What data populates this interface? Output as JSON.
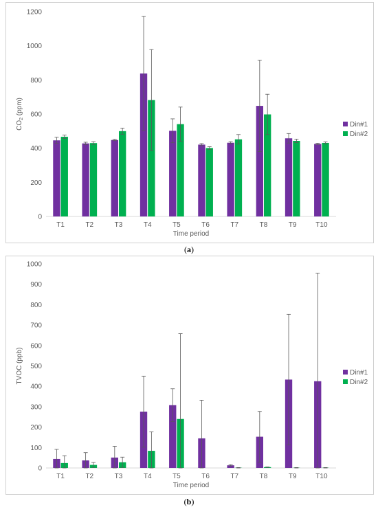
{
  "captions": {
    "a_open": "(",
    "a_letter": "a",
    "a_close": ")",
    "b_open": "(",
    "b_letter": "b",
    "b_close": ")"
  },
  "colors": {
    "din1": "#7030a0",
    "din2": "#00b050",
    "axis": "#d9d9d9",
    "error": "#595959"
  },
  "chart_data": [
    {
      "type": "bar",
      "title": "",
      "xlabel": "Time period",
      "ylabel_main": "CO",
      "ylabel_sub": "2",
      "ylabel_tail": " (ppm)",
      "ylim": [
        0,
        1200
      ],
      "yticks": [
        0,
        200,
        400,
        600,
        800,
        1000,
        1200
      ],
      "grid": false,
      "legend_position": "right",
      "categories": [
        "T1",
        "T2",
        "T3",
        "T4",
        "T5",
        "T6",
        "T7",
        "T8",
        "T9",
        "T10"
      ],
      "series": [
        {
          "name": "Din#1",
          "color": "#7030a0",
          "values": [
            446,
            428,
            448,
            838,
            502,
            421,
            432,
            648,
            458,
            425
          ],
          "errors": [
            18,
            7,
            4,
            335,
            70,
            6,
            6,
            268,
            28,
            4
          ]
        },
        {
          "name": "Din#2",
          "color": "#00b050",
          "values": [
            467,
            430,
            500,
            682,
            541,
            401,
            452,
            598,
            443,
            431
          ],
          "errors": [
            10,
            8,
            18,
            296,
            100,
            8,
            28,
            118,
            10,
            6
          ]
        }
      ]
    },
    {
      "type": "bar",
      "title": "",
      "xlabel": "Time period",
      "ylabel": "TVOC (ppb)",
      "ylim": [
        0,
        1000
      ],
      "yticks": [
        0,
        100,
        200,
        300,
        400,
        500,
        600,
        700,
        800,
        900,
        1000
      ],
      "grid": false,
      "legend_position": "right",
      "categories": [
        "T1",
        "T2",
        "T3",
        "T4",
        "T5",
        "T6",
        "T7",
        "T8",
        "T9",
        "T10"
      ],
      "series": [
        {
          "name": "Din#1",
          "color": "#7030a0",
          "values": [
            44,
            37,
            51,
            276,
            308,
            145,
            13,
            153,
            433,
            425
          ],
          "errors": [
            47,
            38,
            55,
            174,
            80,
            187,
            3,
            124,
            320,
            530
          ]
        },
        {
          "name": "Din#2",
          "color": "#00b050",
          "values": [
            24,
            15,
            28,
            84,
            240,
            0,
            1,
            4,
            1,
            1
          ],
          "errors": [
            36,
            12,
            25,
            93,
            418,
            0,
            1,
            1,
            1,
            1
          ]
        }
      ]
    }
  ]
}
